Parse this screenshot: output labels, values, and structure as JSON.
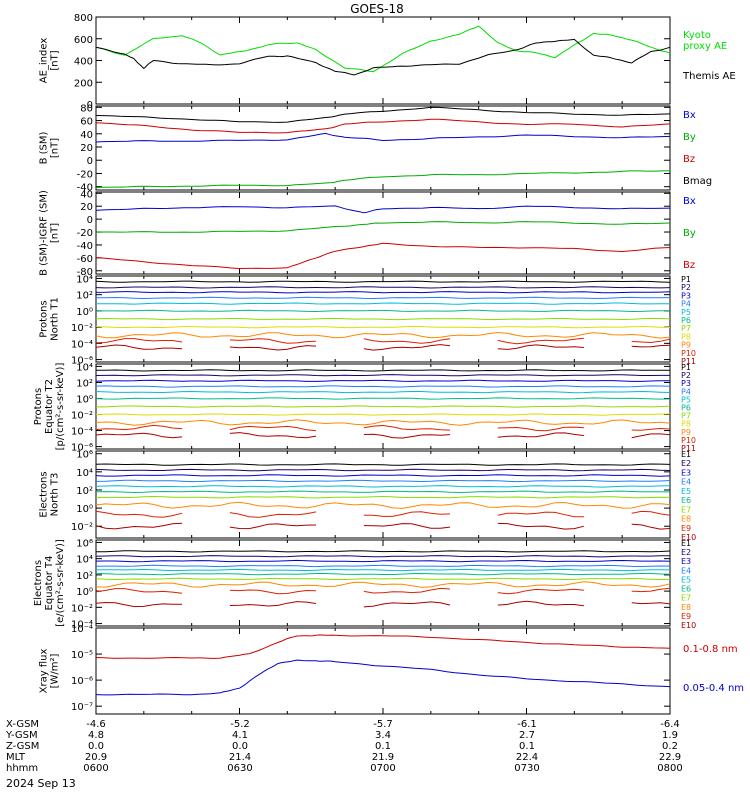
{
  "title": "GOES-18",
  "chart_data": {
    "type": "line",
    "x_range": [
      "0600",
      "0800"
    ],
    "panels": [
      {
        "id": "ae",
        "ylabel": [
          "AE_index",
          "[nT]"
        ],
        "scale": "linear",
        "ylim": [
          0,
          800
        ],
        "ticks": [
          "0",
          "200",
          "400",
          "600",
          "800"
        ],
        "tick_values": [
          0,
          200,
          400,
          600,
          800
        ],
        "labels": [
          {
            "text": "Kyoto",
            "color": "#00dd00"
          },
          {
            "text": "proxy AE",
            "color": "#00dd00"
          },
          {
            "text": "Themis AE",
            "color": "#000000"
          }
        ],
        "series": [
          {
            "name": "Kyoto proxy AE",
            "color": "#00dd00",
            "x": [
              0,
              6,
              12,
              18,
              22,
              26,
              30,
              34,
              38,
              42,
              46,
              52,
              58,
              64,
              70,
              76,
              80,
              84,
              88,
              92,
              96,
              100,
              104,
              108,
              112,
              116,
              120
            ],
            "values": [
              520,
              450,
              600,
              630,
              560,
              450,
              480,
              520,
              560,
              560,
              500,
              330,
              300,
              460,
              580,
              640,
              720,
              560,
              490,
              470,
              430,
              540,
              650,
              630,
              590,
              520,
              470
            ]
          },
          {
            "name": "Themis AE",
            "color": "#000000",
            "x": [
              0,
              6,
              8,
              10,
              12,
              18,
              24,
              30,
              36,
              40,
              46,
              50,
              54,
              58,
              64,
              70,
              76,
              82,
              88,
              92,
              96,
              100,
              104,
              108,
              112,
              116,
              120
            ],
            "values": [
              520,
              460,
              410,
              330,
              400,
              370,
              360,
              370,
              440,
              440,
              380,
              300,
              270,
              330,
              350,
              360,
              370,
              450,
              500,
              560,
              580,
              590,
              450,
              420,
              380,
              480,
              520
            ]
          }
        ]
      },
      {
        "id": "bsm",
        "ylabel": [
          "B (SM)",
          "[nT]"
        ],
        "scale": "linear",
        "ylim": [
          -45,
          82
        ],
        "ticks": [
          "-40",
          "-20",
          "0",
          "20",
          "40",
          "60",
          "80"
        ],
        "tick_values": [
          -40,
          -20,
          0,
          20,
          40,
          60,
          80
        ],
        "labels": [
          {
            "text": "Bx",
            "color": "#0000cc"
          },
          {
            "text": "By",
            "color": "#00aa00"
          },
          {
            "text": "Bz",
            "color": "#cc0000"
          },
          {
            "text": "Bmag",
            "color": "#000000"
          }
        ],
        "series": [
          {
            "name": "Bmag",
            "color": "#000000",
            "x": [
              0,
              10,
              20,
              30,
              40,
              48,
              52,
              60,
              70,
              80,
              90,
              100,
              110,
              120
            ],
            "values": [
              68,
              65,
              62,
              58,
              58,
              64,
              70,
              74,
              80,
              76,
              72,
              70,
              68,
              70
            ]
          },
          {
            "name": "Bz",
            "color": "#cc0000",
            "x": [
              0,
              10,
              20,
              30,
              40,
              48,
              52,
              60,
              70,
              80,
              90,
              100,
              110,
              120
            ],
            "values": [
              57,
              52,
              46,
              42,
              42,
              47,
              55,
              58,
              62,
              58,
              54,
              55,
              50,
              55
            ]
          },
          {
            "name": "Bx",
            "color": "#0000cc",
            "x": [
              0,
              10,
              20,
              30,
              40,
              48,
              52,
              60,
              70,
              80,
              90,
              100,
              110,
              120
            ],
            "values": [
              28,
              29,
              29,
              30,
              31,
              40,
              35,
              30,
              33,
              35,
              38,
              36,
              34,
              36
            ]
          },
          {
            "name": "By",
            "color": "#00aa00",
            "x": [
              0,
              10,
              20,
              30,
              40,
              48,
              52,
              60,
              70,
              80,
              90,
              100,
              110,
              120
            ],
            "values": [
              -41,
              -40,
              -39,
              -38,
              -38,
              -35,
              -30,
              -25,
              -22,
              -22,
              -20,
              -19,
              -17,
              -16
            ]
          }
        ]
      },
      {
        "id": "dbsm",
        "ylabel": [
          "B (SM)-IGRF (SM)",
          "[nT]"
        ],
        "scale": "linear",
        "ylim": [
          -85,
          42
        ],
        "ticks": [
          "-80",
          "-60",
          "-40",
          "-20",
          "0",
          "20",
          "40"
        ],
        "tick_values": [
          -80,
          -60,
          -40,
          -20,
          0,
          20,
          40
        ],
        "labels": [
          {
            "text": "Bx",
            "color": "#0000cc"
          },
          {
            "text": "By",
            "color": "#00aa00"
          },
          {
            "text": "Bz",
            "color": "#cc0000"
          }
        ],
        "series": [
          {
            "name": "Bx",
            "color": "#0000cc",
            "x": [
              0,
              10,
              20,
              30,
              40,
              50,
              56,
              60,
              70,
              80,
              90,
              100,
              110,
              120
            ],
            "values": [
              14,
              16,
              18,
              19,
              18,
              20,
              10,
              16,
              18,
              16,
              20,
              18,
              16,
              17
            ]
          },
          {
            "name": "By",
            "color": "#00aa00",
            "x": [
              0,
              10,
              20,
              30,
              40,
              50,
              56,
              60,
              70,
              80,
              90,
              100,
              110,
              120
            ],
            "values": [
              -20,
              -20,
              -20,
              -19,
              -18,
              -12,
              -8,
              -6,
              -4,
              -6,
              -4,
              -6,
              -8,
              -6
            ]
          },
          {
            "name": "Bz",
            "color": "#cc0000",
            "x": [
              0,
              10,
              20,
              30,
              40,
              45,
              50,
              56,
              60,
              70,
              80,
              90,
              100,
              110,
              120
            ],
            "values": [
              -60,
              -66,
              -72,
              -76,
              -76,
              -62,
              -50,
              -42,
              -38,
              -42,
              -44,
              -44,
              -46,
              -50,
              -44
            ]
          }
        ]
      },
      {
        "id": "pnt1",
        "ylabel": [
          "Protons",
          "North T1"
        ],
        "scale": "log",
        "ylim": [
          -6.3,
          4.3
        ],
        "ticks": [
          "10⁴",
          "10²",
          "10⁰",
          "10⁻²",
          "10⁻⁴",
          "10⁻⁶"
        ],
        "tick_values": [
          4,
          2,
          0,
          -2,
          -4,
          -6
        ],
        "labels": [
          {
            "text": "P1",
            "color": "#000000"
          },
          {
            "text": "P2",
            "color": "#1a006e"
          },
          {
            "text": "P3",
            "color": "#0000cc"
          },
          {
            "text": "P4",
            "color": "#1f7fff"
          },
          {
            "text": "P5",
            "color": "#00bbdd"
          },
          {
            "text": "P6",
            "color": "#00bb88"
          },
          {
            "text": "P7",
            "color": "#88dd00"
          },
          {
            "text": "P8",
            "color": "#dddd00"
          },
          {
            "text": "P9",
            "color": "#ff8800"
          },
          {
            "text": "P10",
            "color": "#dd2200"
          },
          {
            "text": "P11",
            "color": "#aa0000"
          }
        ],
        "levels": [
          3.6,
          2.9,
          2.3,
          1.6,
          0.9,
          0.0,
          -1.0,
          -2.0,
          -3.0,
          -3.7,
          -4.5
        ]
      },
      {
        "id": "pet2",
        "ylabel": [
          "Protons",
          "Equator T2",
          "[p/(cm²-s-sr-keV)]"
        ],
        "scale": "log",
        "ylim": [
          -6.3,
          4.3
        ],
        "ticks": [
          "10⁴",
          "10²",
          "10⁰",
          "10⁻²",
          "10⁻⁴",
          "10⁻⁶"
        ],
        "tick_values": [
          4,
          2,
          0,
          -2,
          -4,
          -6
        ],
        "labels": [
          {
            "text": "P1",
            "color": "#000000"
          },
          {
            "text": "P2",
            "color": "#1a006e"
          },
          {
            "text": "P3",
            "color": "#0000cc"
          },
          {
            "text": "P4",
            "color": "#1f7fff"
          },
          {
            "text": "P5",
            "color": "#00bbdd"
          },
          {
            "text": "P6",
            "color": "#00bb88"
          },
          {
            "text": "P7",
            "color": "#88dd00"
          },
          {
            "text": "P8",
            "color": "#dddd00"
          },
          {
            "text": "P9",
            "color": "#ff8800"
          },
          {
            "text": "P10",
            "color": "#dd2200"
          },
          {
            "text": "P11",
            "color": "#aa0000"
          }
        ],
        "levels": [
          3.5,
          2.9,
          2.2,
          1.5,
          0.8,
          0.0,
          -1.0,
          -2.0,
          -3.0,
          -3.7,
          -4.6
        ]
      },
      {
        "id": "ent3",
        "ylabel": [
          "Electrons",
          "North T3"
        ],
        "scale": "log",
        "ylim": [
          -3.3,
          6.3
        ],
        "ticks": [
          "10⁶",
          "10⁴",
          "10²",
          "10⁰",
          "10⁻²"
        ],
        "tick_values": [
          6,
          4,
          2,
          0,
          -2
        ],
        "labels": [
          {
            "text": "E1",
            "color": "#000000"
          },
          {
            "text": "E2",
            "color": "#1a006e"
          },
          {
            "text": "E3",
            "color": "#0000cc"
          },
          {
            "text": "E4",
            "color": "#1f7fff"
          },
          {
            "text": "E5",
            "color": "#00bbdd"
          },
          {
            "text": "E6",
            "color": "#00bb88"
          },
          {
            "text": "E7",
            "color": "#88dd00"
          },
          {
            "text": "E8",
            "color": "#ff8800"
          },
          {
            "text": "E9",
            "color": "#dd2200"
          },
          {
            "text": "E10",
            "color": "#aa0000"
          }
        ],
        "levels": [
          4.8,
          4.2,
          3.6,
          3.0,
          2.4,
          1.8,
          1.2,
          0.3,
          -0.7,
          -2.0
        ]
      },
      {
        "id": "eet4",
        "ylabel": [
          "Electrons",
          "Equator T4",
          "[e/(cm²-s-sr-keV)]"
        ],
        "scale": "log",
        "ylim": [
          -4.3,
          6.3
        ],
        "ticks": [
          "10⁶",
          "10⁴",
          "10²",
          "10⁰",
          "10⁻²",
          "10⁻⁴"
        ],
        "tick_values": [
          6,
          4,
          2,
          0,
          -2,
          -4
        ],
        "labels": [
          {
            "text": "E1",
            "color": "#000000"
          },
          {
            "text": "E2",
            "color": "#1a006e"
          },
          {
            "text": "E3",
            "color": "#0000cc"
          },
          {
            "text": "E4",
            "color": "#1f7fff"
          },
          {
            "text": "E5",
            "color": "#00bbdd"
          },
          {
            "text": "E6",
            "color": "#00bb88"
          },
          {
            "text": "E7",
            "color": "#88dd00"
          },
          {
            "text": "E8",
            "color": "#ff8800"
          },
          {
            "text": "E9",
            "color": "#dd2200"
          },
          {
            "text": "E10",
            "color": "#aa0000"
          }
        ],
        "levels": [
          4.9,
          4.3,
          3.7,
          3.1,
          2.6,
          2.1,
          1.5,
          0.8,
          0.0,
          -1.6
        ]
      },
      {
        "id": "xray",
        "ylabel": [
          "Xray flux",
          "[W/m²]"
        ],
        "scale": "log",
        "ylim": [
          -7.3,
          -4.0
        ],
        "ticks": [
          "10⁻⁴",
          "10⁻⁵",
          "10⁻⁶",
          "10⁻⁷"
        ],
        "tick_values": [
          -4,
          -5,
          -6,
          -7
        ],
        "labels": [
          {
            "text": "0.1-0.8 nm",
            "color": "#cc0000"
          },
          {
            "text": "0.05-0.4 nm",
            "color": "#0000cc"
          }
        ],
        "series": [
          {
            "name": "0.1-0.8 nm",
            "color": "#cc0000",
            "x": [
              0,
              10,
              20,
              26,
              32,
              38,
              42,
              46,
              50,
              60,
              70,
              80,
              90,
              100,
              110,
              120
            ],
            "values": [
              -5.15,
              -5.15,
              -5.15,
              -5.15,
              -5.0,
              -4.55,
              -4.3,
              -4.28,
              -4.28,
              -4.3,
              -4.35,
              -4.45,
              -4.55,
              -4.65,
              -4.72,
              -4.78
            ]
          },
          {
            "name": "0.05-0.4 nm",
            "color": "#0000cc",
            "x": [
              0,
              10,
              20,
              26,
              30,
              34,
              38,
              42,
              46,
              50,
              60,
              70,
              80,
              90,
              100,
              110,
              120
            ],
            "values": [
              -6.55,
              -6.55,
              -6.55,
              -6.5,
              -6.3,
              -5.8,
              -5.35,
              -5.25,
              -5.25,
              -5.3,
              -5.45,
              -5.6,
              -5.8,
              -5.95,
              -6.05,
              -6.15,
              -6.25
            ]
          }
        ]
      }
    ],
    "axis_rows": [
      {
        "label": "X-GSM",
        "values": [
          "-4.6",
          "-5.2",
          "-5.7",
          "-6.1",
          "-6.4"
        ]
      },
      {
        "label": "Y-GSM",
        "values": [
          "4.8",
          "4.1",
          "3.4",
          "2.7",
          "1.9"
        ]
      },
      {
        "label": "Z-GSM",
        "values": [
          "0.0",
          "0.0",
          "0.1",
          "0.1",
          "0.2"
        ]
      },
      {
        "label": "MLT",
        "values": [
          "20.9",
          "21.4",
          "21.9",
          "22.4",
          "22.9"
        ]
      },
      {
        "label": "hhmm",
        "values": [
          "0600",
          "0630",
          "0700",
          "0730",
          "0800"
        ]
      }
    ],
    "date": "2024 Sep 13"
  }
}
